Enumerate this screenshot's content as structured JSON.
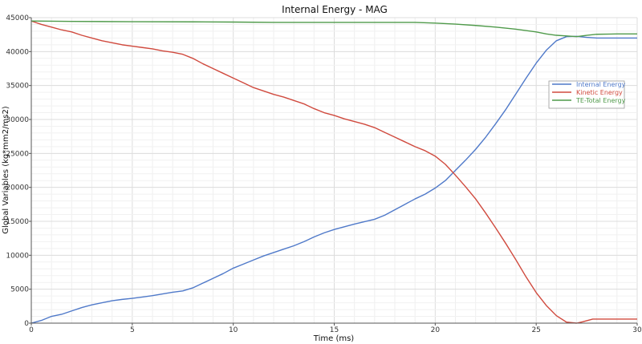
{
  "chart_data": {
    "type": "line",
    "title": "Internal Energy - MAG",
    "xlabel": "Time (ms)",
    "ylabel": "Global Variables (kg*mm2/ms2)",
    "xlim": [
      0,
      30
    ],
    "ylim": [
      0,
      45000
    ],
    "x_ticks": [
      0,
      5,
      10,
      15,
      20,
      25,
      30
    ],
    "y_ticks": [
      0,
      5000,
      10000,
      15000,
      20000,
      25000,
      30000,
      35000,
      40000,
      45000
    ],
    "x_tick_labels": [
      "0",
      "5",
      "10",
      "15",
      "20",
      "25",
      "30"
    ],
    "y_tick_labels": [
      "0",
      "5000",
      "10000",
      "15000",
      "20000",
      "25000",
      "30000",
      "35000",
      "40000",
      "45000"
    ],
    "grid": true,
    "legend_position": "right",
    "series": [
      {
        "name": "Internal Energy",
        "color": "#4f79c9",
        "points": [
          [
            0,
            0
          ],
          [
            0.5,
            400
          ],
          [
            1,
            1000
          ],
          [
            1.5,
            1300
          ],
          [
            2,
            1800
          ],
          [
            2.5,
            2300
          ],
          [
            3,
            2700
          ],
          [
            3.5,
            3000
          ],
          [
            4,
            3300
          ],
          [
            4.5,
            3500
          ],
          [
            5,
            3650
          ],
          [
            5.5,
            3850
          ],
          [
            6,
            4050
          ],
          [
            6.5,
            4300
          ],
          [
            7,
            4550
          ],
          [
            7.5,
            4750
          ],
          [
            8,
            5200
          ],
          [
            8.5,
            5900
          ],
          [
            9,
            6600
          ],
          [
            9.5,
            7300
          ],
          [
            10,
            8100
          ],
          [
            10.5,
            8700
          ],
          [
            11,
            9300
          ],
          [
            11.5,
            9900
          ],
          [
            12,
            10400
          ],
          [
            12.5,
            10900
          ],
          [
            13,
            11400
          ],
          [
            13.5,
            12000
          ],
          [
            14,
            12700
          ],
          [
            14.5,
            13300
          ],
          [
            15,
            13800
          ],
          [
            15.5,
            14200
          ],
          [
            16,
            14600
          ],
          [
            16.5,
            14950
          ],
          [
            17,
            15300
          ],
          [
            17.5,
            15900
          ],
          [
            18,
            16700
          ],
          [
            18.5,
            17500
          ],
          [
            19,
            18300
          ],
          [
            19.5,
            19000
          ],
          [
            20,
            19900
          ],
          [
            20.5,
            21000
          ],
          [
            21,
            22500
          ],
          [
            21.5,
            24000
          ],
          [
            22,
            25600
          ],
          [
            22.5,
            27400
          ],
          [
            23,
            29400
          ],
          [
            23.5,
            31500
          ],
          [
            24,
            33800
          ],
          [
            24.5,
            36100
          ],
          [
            25,
            38300
          ],
          [
            25.5,
            40200
          ],
          [
            26,
            41600
          ],
          [
            26.5,
            42200
          ],
          [
            27,
            42250
          ],
          [
            27.5,
            42100
          ],
          [
            28,
            42000
          ],
          [
            29,
            42000
          ],
          [
            30,
            42000
          ]
        ]
      },
      {
        "name": "Kinetic Energy",
        "color": "#d04a3e",
        "points": [
          [
            0,
            44500
          ],
          [
            0.5,
            44000
          ],
          [
            1,
            43600
          ],
          [
            1.5,
            43200
          ],
          [
            2,
            42900
          ],
          [
            2.5,
            42400
          ],
          [
            3,
            42000
          ],
          [
            3.5,
            41600
          ],
          [
            4,
            41300
          ],
          [
            4.5,
            41000
          ],
          [
            5,
            40800
          ],
          [
            5.5,
            40600
          ],
          [
            6,
            40400
          ],
          [
            6.5,
            40100
          ],
          [
            7,
            39900
          ],
          [
            7.5,
            39600
          ],
          [
            8,
            39000
          ],
          [
            8.5,
            38200
          ],
          [
            9,
            37500
          ],
          [
            9.5,
            36800
          ],
          [
            10,
            36100
          ],
          [
            10.5,
            35400
          ],
          [
            11,
            34700
          ],
          [
            11.5,
            34200
          ],
          [
            12,
            33700
          ],
          [
            12.5,
            33300
          ],
          [
            13,
            32800
          ],
          [
            13.5,
            32300
          ],
          [
            14,
            31600
          ],
          [
            14.5,
            31000
          ],
          [
            15,
            30600
          ],
          [
            15.5,
            30100
          ],
          [
            16,
            29700
          ],
          [
            16.5,
            29300
          ],
          [
            17,
            28800
          ],
          [
            17.5,
            28100
          ],
          [
            18,
            27400
          ],
          [
            18.5,
            26700
          ],
          [
            19,
            26000
          ],
          [
            19.5,
            25400
          ],
          [
            20,
            24600
          ],
          [
            20.5,
            23400
          ],
          [
            21,
            21800
          ],
          [
            21.5,
            20100
          ],
          [
            22,
            18300
          ],
          [
            22.5,
            16200
          ],
          [
            23,
            14000
          ],
          [
            23.5,
            11700
          ],
          [
            24,
            9300
          ],
          [
            24.5,
            6800
          ],
          [
            25,
            4500
          ],
          [
            25.5,
            2600
          ],
          [
            26,
            1100
          ],
          [
            26.5,
            150
          ],
          [
            27,
            0
          ],
          [
            27.3,
            200
          ],
          [
            27.8,
            600
          ],
          [
            28.5,
            600
          ],
          [
            29,
            600
          ],
          [
            30,
            600
          ]
        ]
      },
      {
        "name": "TE-Total Energy",
        "color": "#4f9a4a",
        "points": [
          [
            0,
            44500
          ],
          [
            2,
            44450
          ],
          [
            5,
            44400
          ],
          [
            8,
            44380
          ],
          [
            10,
            44350
          ],
          [
            12,
            44300
          ],
          [
            15,
            44300
          ],
          [
            19,
            44300
          ],
          [
            20,
            44200
          ],
          [
            21,
            44050
          ],
          [
            22,
            43850
          ],
          [
            23,
            43600
          ],
          [
            24,
            43300
          ],
          [
            25,
            42900
          ],
          [
            25.5,
            42600
          ],
          [
            26,
            42400
          ],
          [
            26.5,
            42300
          ],
          [
            27,
            42200
          ],
          [
            27.5,
            42400
          ],
          [
            28,
            42550
          ],
          [
            29,
            42600
          ],
          [
            30,
            42600
          ]
        ]
      }
    ]
  }
}
